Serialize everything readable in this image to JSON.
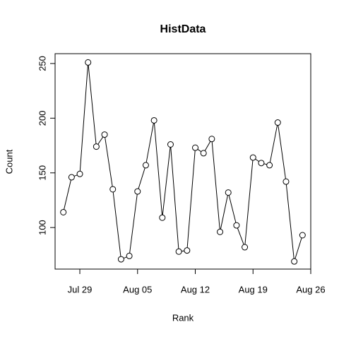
{
  "chart_data": {
    "type": "line",
    "title": "HistData",
    "x_label": "Rank",
    "y_label": "Count",
    "x": [
      "Jul 27",
      "Jul 28",
      "Jul 29",
      "Jul 30",
      "Jul 31",
      "Aug 01",
      "Aug 02",
      "Aug 03",
      "Aug 04",
      "Aug 05",
      "Aug 06",
      "Aug 07",
      "Aug 08",
      "Aug 09",
      "Aug 10",
      "Aug 11",
      "Aug 12",
      "Aug 13",
      "Aug 14",
      "Aug 15",
      "Aug 16",
      "Aug 17",
      "Aug 18",
      "Aug 19",
      "Aug 20",
      "Aug 21",
      "Aug 22",
      "Aug 23",
      "Aug 24",
      "Aug 25"
    ],
    "values": [
      114,
      146,
      149,
      251,
      174,
      185,
      135,
      71,
      74,
      133,
      157,
      198,
      109,
      176,
      78,
      79,
      173,
      168,
      181,
      96,
      132,
      102,
      82,
      164,
      159,
      157,
      196,
      142,
      69,
      93
    ],
    "color": "#000000",
    "xlim": [
      "Jul 26",
      "Aug 26"
    ],
    "xticks": [
      "Jul 29",
      "Aug 05",
      "Aug 12",
      "Aug 19",
      "Aug 26"
    ],
    "ylim": [
      62,
      259
    ],
    "yticks": [
      100,
      150,
      200,
      250
    ]
  }
}
